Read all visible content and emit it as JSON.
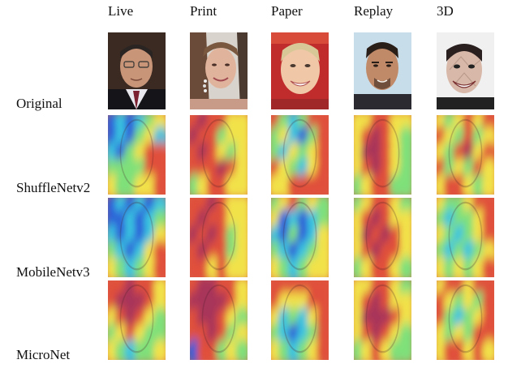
{
  "figure": {
    "columns": [
      {
        "label": "Live"
      },
      {
        "label": "Print"
      },
      {
        "label": "Paper"
      },
      {
        "label": "Replay"
      },
      {
        "label": "3D"
      }
    ],
    "rows": [
      {
        "label": "Original"
      },
      {
        "label": "ShuffleNetv2"
      },
      {
        "label": "MobileNetv3"
      },
      {
        "label": "MicroNet"
      }
    ]
  }
}
